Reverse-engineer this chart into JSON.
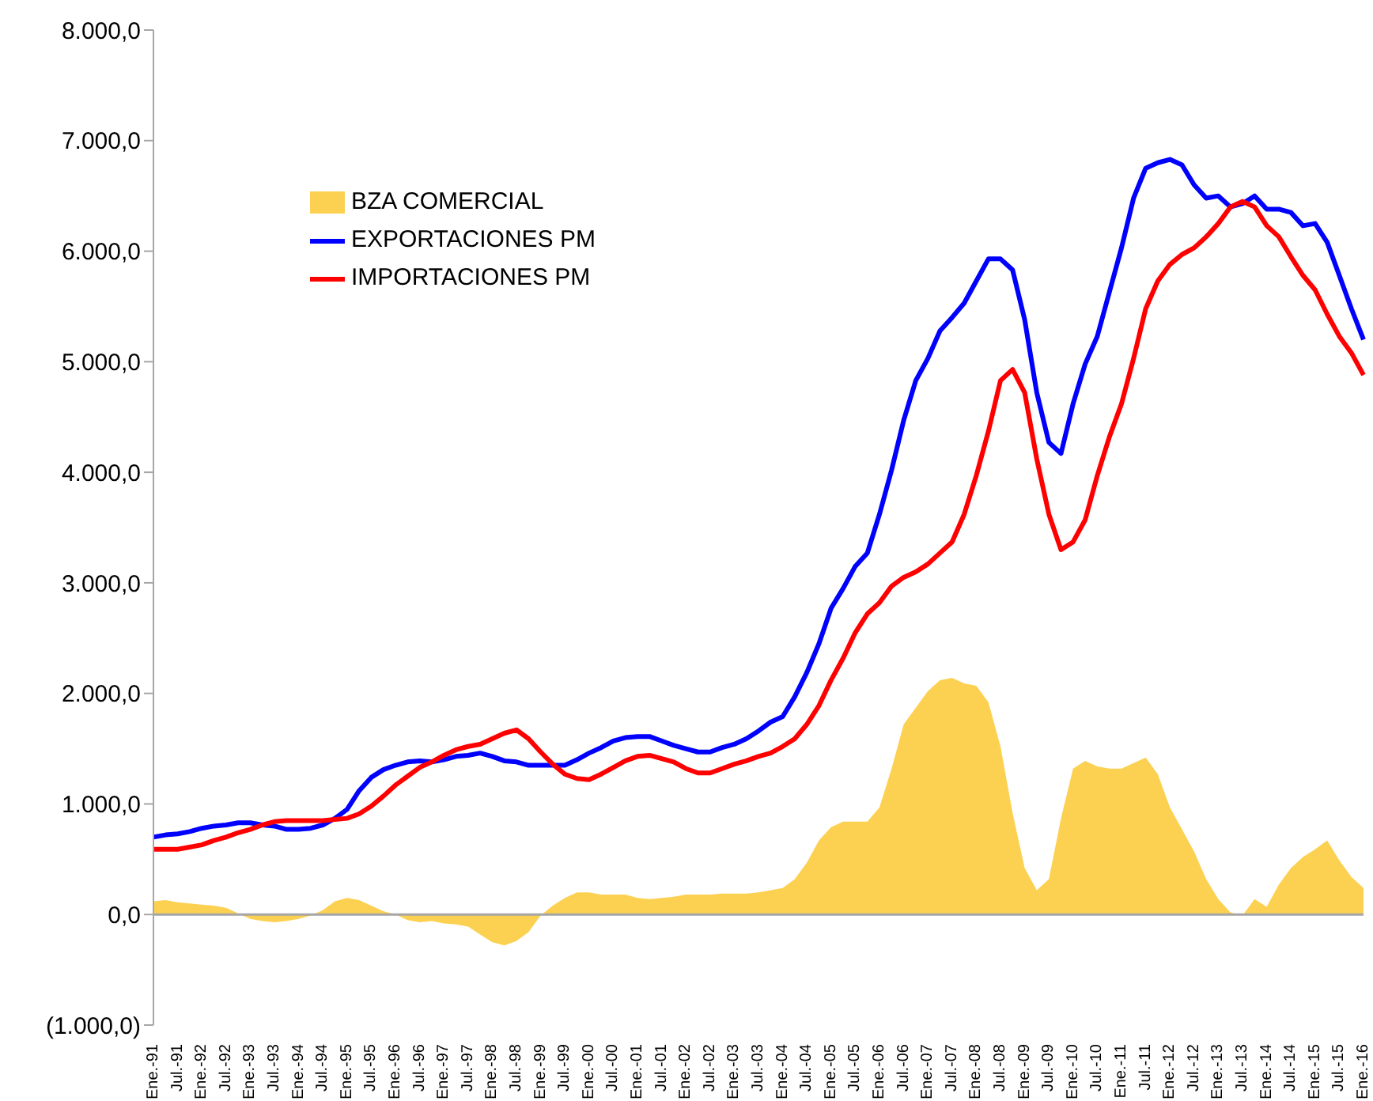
{
  "chart_data": {
    "type": "line",
    "categories": [
      "Ene.-91",
      null,
      "Jul.-91",
      null,
      "Ene.-92",
      null,
      "Jul.-92",
      null,
      "Ene.-93",
      null,
      "Jul.-93",
      null,
      "Ene.-94",
      null,
      "Jul.-94",
      null,
      "Ene.-95",
      null,
      "Jul.-95",
      null,
      "Ene.-96",
      null,
      "Jul.-96",
      null,
      "Ene.-97",
      null,
      "Jul.-97",
      null,
      "Ene.-98",
      null,
      "Jul.-98",
      null,
      "Ene.-99",
      null,
      "Jul.-99",
      null,
      "Ene.-00",
      null,
      "Jul.-00",
      null,
      "Ene.-01",
      null,
      "Jul.-01",
      null,
      "Ene.-02",
      null,
      "Jul.-02",
      null,
      "Ene.-03",
      null,
      "Jul.-03",
      null,
      "Ene.-04",
      null,
      "Jul.-04",
      null,
      "Ene.-05",
      null,
      "Jul.-05",
      null,
      "Ene.-06",
      null,
      "Jul.-06",
      null,
      "Ene.-07",
      null,
      "Jul.-07",
      null,
      "Ene.-08",
      null,
      "Jul.-08",
      null,
      "Ene.-09",
      null,
      "Jul.-09",
      null,
      "Ene.-10",
      null,
      "Jul.-10",
      null,
      "Ene.-11",
      null,
      "Jul.-11",
      null,
      "Ene.-12",
      null,
      "Jul.-12",
      null,
      "Ene.-13",
      null,
      "Jul.-13",
      null,
      "Ene.-14",
      null,
      "Jul.-14",
      null,
      "Ene.-15",
      null,
      "Jul.-15",
      null,
      "Ene.-16"
    ],
    "series": [
      {
        "name": "BZA COMERCIAL",
        "type": "area",
        "color": "#fcd152",
        "values": [
          120,
          130,
          110,
          100,
          90,
          80,
          60,
          10,
          -40,
          -60,
          -70,
          -60,
          -40,
          -10,
          40,
          120,
          150,
          130,
          80,
          30,
          0,
          -50,
          -70,
          -60,
          -80,
          -90,
          -110,
          -180,
          -250,
          -280,
          -240,
          -160,
          -10,
          80,
          150,
          200,
          200,
          180,
          180,
          180,
          150,
          140,
          150,
          160,
          180,
          180,
          180,
          190,
          190,
          190,
          200,
          220,
          240,
          320,
          470,
          670,
          790,
          840,
          840,
          840,
          970,
          1320,
          1720,
          1870,
          2020,
          2120,
          2140,
          2090,
          2070,
          1920,
          1520,
          920,
          420,
          220,
          320,
          870,
          1320,
          1390,
          1340,
          1320,
          1320,
          1370,
          1420,
          1270,
          970,
          770,
          570,
          320,
          140,
          20,
          -10,
          140,
          70,
          270,
          420,
          520,
          590,
          670,
          490,
          340,
          240
        ]
      },
      {
        "name": "EXPORTACIONES PM",
        "color": "#0000ff",
        "values": [
          700,
          720,
          730,
          750,
          780,
          800,
          810,
          830,
          830,
          810,
          800,
          770,
          770,
          780,
          810,
          870,
          950,
          1120,
          1240,
          1310,
          1350,
          1380,
          1390,
          1380,
          1400,
          1430,
          1440,
          1460,
          1430,
          1390,
          1380,
          1350,
          1350,
          1350,
          1350,
          1400,
          1460,
          1510,
          1570,
          1600,
          1610,
          1610,
          1570,
          1530,
          1500,
          1470,
          1470,
          1510,
          1540,
          1590,
          1660,
          1740,
          1790,
          1970,
          2190,
          2450,
          2770,
          2950,
          3150,
          3270,
          3620,
          4020,
          4470,
          4830,
          5030,
          5280,
          5400,
          5530,
          5730,
          5930,
          5930,
          5830,
          5380,
          4720,
          4270,
          4170,
          4620,
          4980,
          5230,
          5630,
          6030,
          6480,
          6750,
          6800,
          6830,
          6780,
          6600,
          6480,
          6500,
          6400,
          6430,
          6500,
          6380,
          6380,
          6350,
          6230,
          6250,
          6080,
          5780,
          5480,
          5200
        ]
      },
      {
        "name": "IMPORTACIONES PM",
        "color": "#ff0000",
        "values": [
          590,
          590,
          590,
          610,
          630,
          670,
          700,
          740,
          770,
          810,
          840,
          850,
          850,
          850,
          850,
          860,
          870,
          910,
          980,
          1070,
          1170,
          1250,
          1330,
          1380,
          1440,
          1490,
          1520,
          1540,
          1590,
          1640,
          1670,
          1590,
          1470,
          1360,
          1270,
          1230,
          1220,
          1270,
          1330,
          1390,
          1430,
          1440,
          1410,
          1380,
          1320,
          1280,
          1280,
          1320,
          1360,
          1390,
          1430,
          1460,
          1520,
          1590,
          1720,
          1890,
          2120,
          2320,
          2550,
          2720,
          2820,
          2970,
          3050,
          3100,
          3170,
          3270,
          3370,
          3620,
          3970,
          4370,
          4830,
          4930,
          4720,
          4120,
          3620,
          3300,
          3370,
          3570,
          3970,
          4320,
          4620,
          5030,
          5480,
          5730,
          5880,
          5970,
          6030,
          6130,
          6250,
          6400,
          6450,
          6400,
          6230,
          6130,
          5950,
          5780,
          5650,
          5430,
          5230,
          5080,
          4880
        ]
      }
    ],
    "ylim": [
      -1000,
      8000
    ],
    "yticks": [
      {
        "value": -1000,
        "label": "(1.000,0)"
      },
      {
        "value": 0,
        "label": "0,0"
      },
      {
        "value": 1000,
        "label": "1.000,0"
      },
      {
        "value": 2000,
        "label": "2.000,0"
      },
      {
        "value": 3000,
        "label": "3.000,0"
      },
      {
        "value": 4000,
        "label": "4.000,0"
      },
      {
        "value": 5000,
        "label": "5.000,0"
      },
      {
        "value": 6000,
        "label": "6.000,0"
      },
      {
        "value": 7000,
        "label": "7.000,0"
      },
      {
        "value": 8000,
        "label": "8.000,0"
      }
    ],
    "ref_lines": [
      {
        "axis": "y",
        "value": 0,
        "color": "#a6a6a6"
      }
    ],
    "legend": "top left",
    "marker": "none"
  }
}
